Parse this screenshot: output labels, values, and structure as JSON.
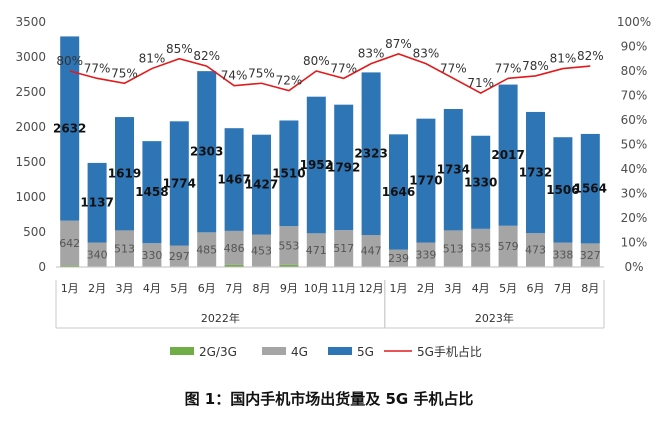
{
  "chart_data": {
    "type": "bar",
    "stacked": true,
    "caption": "图 1：国内手机市场出货量及 5G 手机占比",
    "categories": [
      "1月",
      "2月",
      "3月",
      "4月",
      "5月",
      "6月",
      "7月",
      "8月",
      "9月",
      "10月",
      "11月",
      "12月",
      "1月",
      "2月",
      "3月",
      "4月",
      "5月",
      "6月",
      "7月",
      "8月"
    ],
    "year_groups": [
      {
        "label": "2022年",
        "count": 12
      },
      {
        "label": "2023年",
        "count": 8
      }
    ],
    "y_left": {
      "min": 0,
      "max": 3500,
      "step": 500,
      "ticks": [
        "0",
        "500",
        "1000",
        "1500",
        "2000",
        "2500",
        "3000",
        "3500"
      ]
    },
    "y_right": {
      "min": 0,
      "max": 100,
      "step": 10,
      "ticks": [
        "0%",
        "10%",
        "20%",
        "30%",
        "40%",
        "50%",
        "60%",
        "70%",
        "80%",
        "90%",
        "100%"
      ]
    },
    "series": [
      {
        "name": "2G/3G",
        "color": "#70ad47",
        "values": [
          20,
          10,
          10,
          10,
          10,
          10,
          30,
          10,
          30,
          10,
          10,
          10,
          10,
          10,
          10,
          10,
          10,
          10,
          10,
          10
        ]
      },
      {
        "name": "4G",
        "color": "#a5a5a5",
        "values": [
          642,
          340,
          513,
          330,
          297,
          485,
          486,
          453,
          553,
          471,
          517,
          447,
          239,
          339,
          513,
          535,
          579,
          473,
          338,
          327
        ]
      },
      {
        "name": "5G",
        "color": "#2e75b6",
        "values": [
          2632,
          1137,
          1619,
          1458,
          1774,
          2303,
          1467,
          1427,
          1510,
          1952,
          1792,
          2323,
          1646,
          1770,
          1734,
          1330,
          2017,
          1732,
          1506,
          1564
        ]
      },
      {
        "name": "5G手机占比",
        "color": "#e31a1c",
        "type": "line",
        "axis": "right",
        "values": [
          80,
          77,
          75,
          81,
          85,
          82,
          74,
          75,
          72,
          80,
          77,
          83,
          87,
          83,
          77,
          71,
          77,
          78,
          81,
          82
        ]
      }
    ],
    "labels_5g": [
      "2632",
      "1137",
      "1619",
      "1458",
      "1774",
      "2303",
      "1467",
      "1427",
      "1510",
      "1952",
      "1792",
      "2323",
      "1646",
      "1770",
      "1734",
      "1330",
      "2017",
      "1732",
      "1506",
      "1564"
    ],
    "labels_4g": [
      "642",
      "340",
      "513",
      "330",
      "297",
      "485",
      "486",
      "453",
      "553",
      "471",
      "517",
      "447",
      "239",
      "339",
      "513",
      "535",
      "579",
      "473",
      "338",
      "327"
    ],
    "labels_pct": [
      "80%",
      "77%",
      "75%",
      "81%",
      "85%",
      "82%",
      "74%",
      "75%",
      "72%",
      "80%",
      "77%",
      "83%",
      "87%",
      "83%",
      "77%",
      "71%",
      "77%",
      "78%",
      "81%",
      "82%"
    ],
    "legend": [
      "2G/3G",
      "4G",
      "5G",
      "5G手机占比"
    ],
    "grid": false,
    "legend_position": "bottom"
  }
}
